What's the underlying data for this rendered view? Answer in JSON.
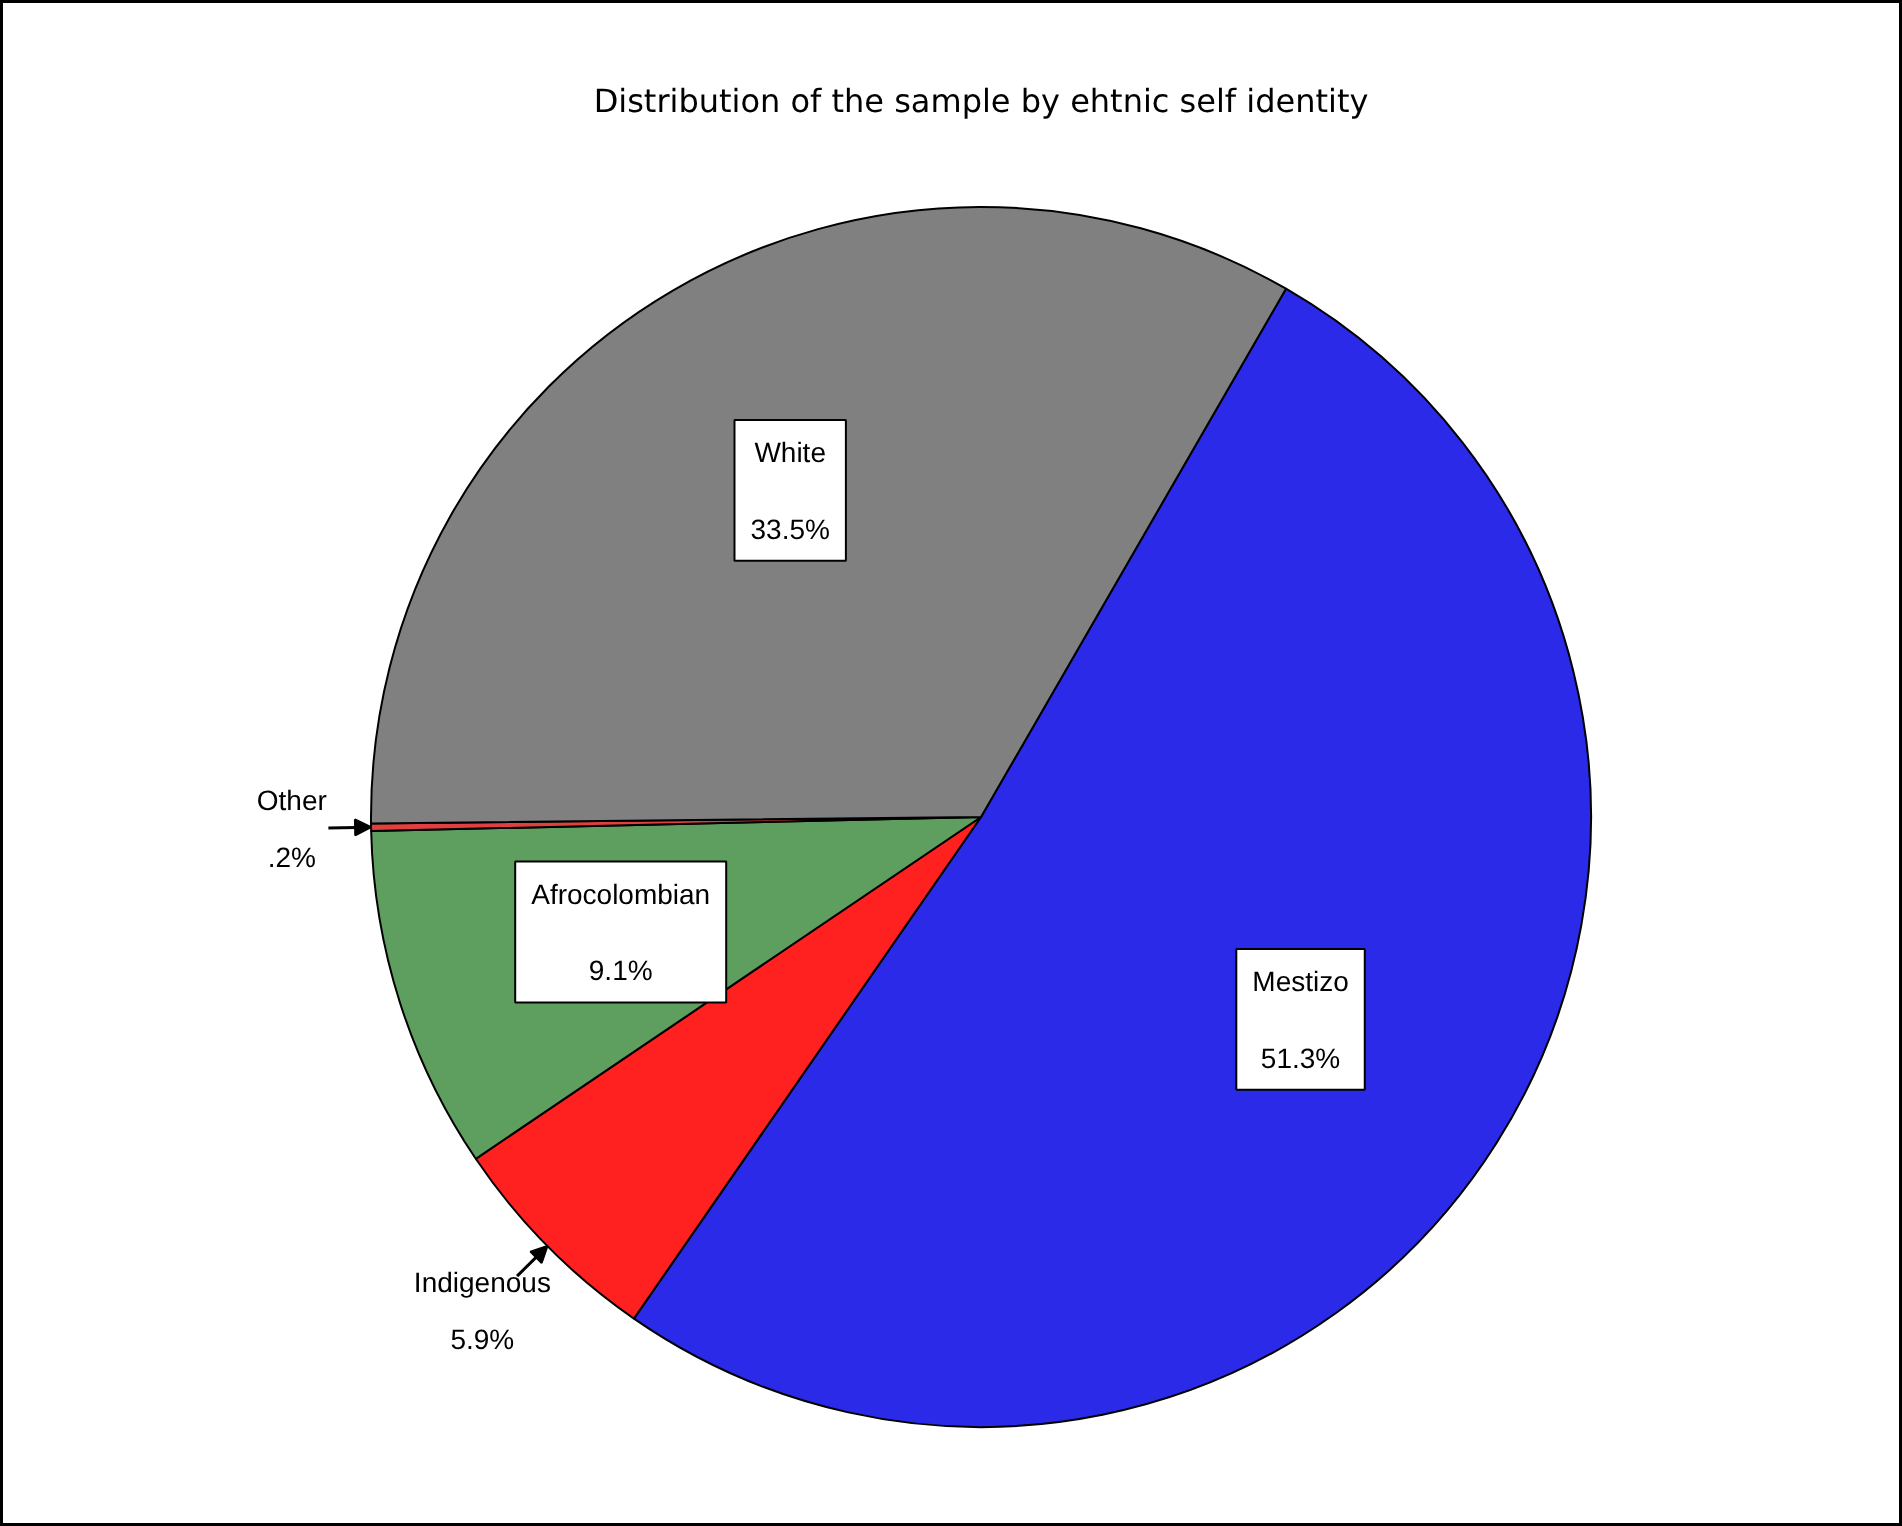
{
  "chart_data": {
    "type": "pie",
    "title": "Distribution of the sample by ehtnic self identity",
    "categories": [
      "Mestizo",
      "Indigenous",
      "Afrocolombian",
      "Other",
      "White"
    ],
    "values": [
      51.3,
      5.9,
      9.1,
      0.2,
      33.5
    ],
    "colors": [
      "#2a2ae8",
      "#ff2020",
      "#5e9e5e",
      "#e04040",
      "#808080"
    ],
    "value_labels": [
      "51.3%",
      "5.9%",
      "9.1%",
      ".2%",
      "33.5%"
    ]
  }
}
